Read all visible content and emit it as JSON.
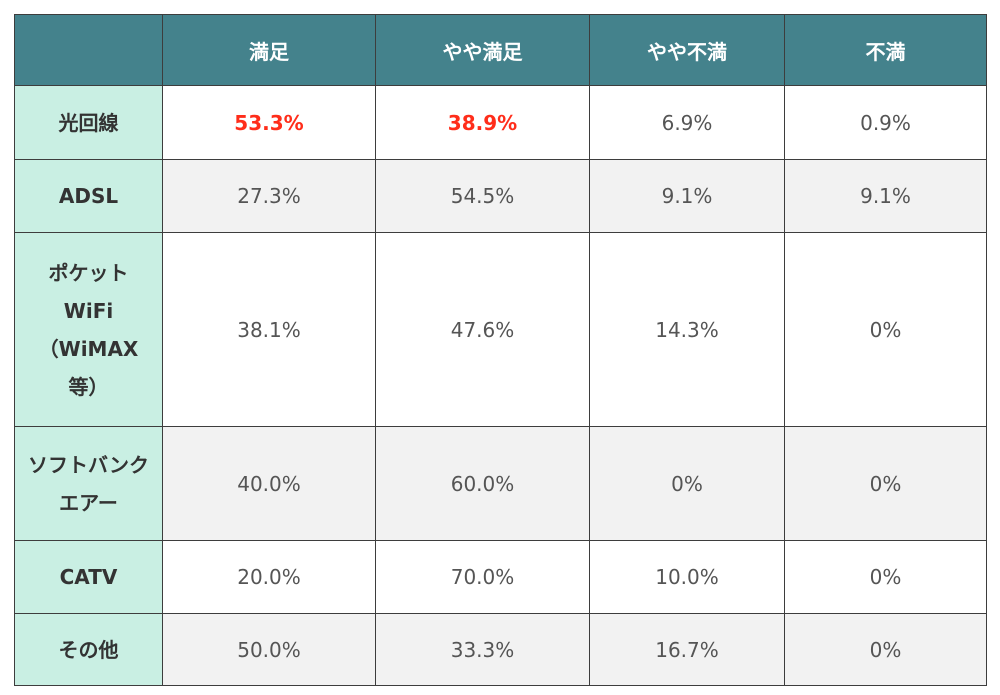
{
  "header": {
    "corner": "",
    "columns": [
      "満足",
      "やや満足",
      "やや不満",
      "不満"
    ]
  },
  "rows": [
    {
      "label": "光回線",
      "values": [
        "53.3%",
        "38.9%",
        "6.9%",
        "0.9%"
      ]
    },
    {
      "label": "ADSL",
      "values": [
        "27.3%",
        "54.5%",
        "9.1%",
        "9.1%"
      ]
    },
    {
      "label": "ポケットWiFi（WiMAX等）",
      "values": [
        "38.1%",
        "47.6%",
        "14.3%",
        "0%"
      ]
    },
    {
      "label": "ソフトバンクエアー",
      "values": [
        "40.0%",
        "60.0%",
        "0%",
        "0%"
      ]
    },
    {
      "label": "CATV",
      "values": [
        "20.0%",
        "70.0%",
        "10.0%",
        "0%"
      ]
    },
    {
      "label": "その他",
      "values": [
        "50.0%",
        "33.3%",
        "16.7%",
        "0%"
      ]
    }
  ],
  "colors": {
    "header_bg": "#44828c",
    "label_bg": "#c9efe3",
    "highlight_text": "#ff2d1a",
    "row_alt_bg": "#f2f2f2"
  }
}
